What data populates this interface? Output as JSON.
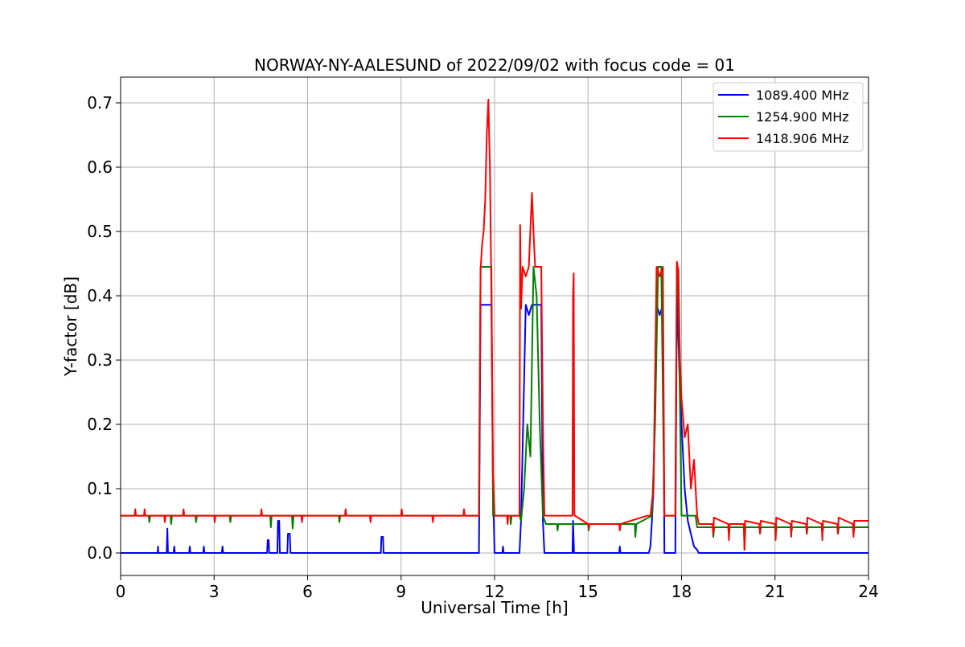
{
  "chart_data": {
    "type": "line",
    "title": "NORWAY-NY-AALESUND of 2022/09/02 with focus code = 01",
    "xlabel": "Universal Time [h]",
    "ylabel": "Y-factor [dB]",
    "xlim": [
      0,
      24
    ],
    "ylim": [
      -0.035,
      0.74
    ],
    "xticks": [
      0,
      3,
      6,
      9,
      12,
      15,
      18,
      21,
      24
    ],
    "yticks": [
      0.0,
      0.1,
      0.2,
      0.3,
      0.4,
      0.5,
      0.6,
      0.7
    ],
    "xtick_labels": [
      "0",
      "3",
      "6",
      "9",
      "12",
      "15",
      "18",
      "21",
      "24"
    ],
    "ytick_labels": [
      "0.0",
      "0.1",
      "0.2",
      "0.3",
      "0.4",
      "0.5",
      "0.6",
      "0.7"
    ],
    "grid": true,
    "legend_position": "top-right",
    "series": [
      {
        "name": "1089.400 MHz",
        "color": "#0000ff",
        "x": [
          0,
          1.19,
          1.2,
          1.21,
          1.48,
          1.5,
          1.52,
          1.7,
          1.72,
          1.74,
          2.2,
          2.22,
          2.24,
          2.65,
          2.67,
          2.69,
          3.25,
          3.27,
          3.29,
          4.7,
          4.72,
          4.75,
          4.77,
          5.03,
          5.05,
          5.09,
          5.11,
          5.35,
          5.37,
          5.43,
          5.45,
          8.35,
          8.37,
          8.42,
          8.44,
          11.5,
          11.55,
          11.6,
          11.9,
          11.95,
          12.0,
          12.25,
          12.27,
          12.29,
          12.8,
          12.85,
          13.0,
          13.1,
          13.2,
          13.5,
          13.55,
          13.6,
          14.5,
          14.52,
          14.55,
          14.58,
          16.0,
          16.02,
          16.04,
          16.95,
          17.0,
          17.05,
          17.1,
          17.2,
          17.3,
          17.4,
          17.45,
          17.8,
          17.85,
          17.95,
          18.0,
          18.1,
          18.2,
          18.3,
          18.4,
          18.5,
          18.55,
          24
        ],
        "y": [
          0,
          0,
          0.01,
          0,
          0,
          0.038,
          0,
          0,
          0.01,
          0,
          0,
          0.01,
          0,
          0,
          0.01,
          0,
          0,
          0.01,
          0,
          0,
          0.02,
          0.02,
          0,
          0,
          0.05,
          0.05,
          0,
          0,
          0.03,
          0.03,
          0,
          0,
          0.025,
          0.025,
          0,
          0,
          0.386,
          0.386,
          0.386,
          0.1,
          0,
          0,
          0.01,
          0,
          0,
          0.05,
          0.386,
          0.37,
          0.386,
          0.386,
          0.05,
          0,
          0,
          0.05,
          0,
          0,
          0,
          0.01,
          0,
          0,
          0.01,
          0.05,
          0.1,
          0.386,
          0.37,
          0.386,
          0,
          0,
          0.41,
          0.25,
          0.2,
          0.1,
          0.05,
          0.03,
          0.01,
          0.005,
          0,
          0
        ]
      },
      {
        "name": "1254.900 MHz",
        "color": "#008000",
        "x": [
          0,
          0.9,
          0.92,
          0.95,
          1.6,
          1.62,
          1.65,
          2.4,
          2.42,
          2.45,
          3.5,
          3.52,
          3.55,
          4.8,
          4.82,
          4.85,
          5.5,
          5.52,
          5.55,
          7.0,
          7.02,
          7.05,
          11.5,
          11.55,
          11.6,
          11.9,
          11.95,
          12.5,
          12.52,
          12.55,
          12.8,
          12.85,
          12.95,
          13.05,
          13.15,
          13.25,
          13.35,
          13.45,
          13.55,
          13.65,
          14.0,
          14.02,
          14.05,
          15.0,
          15.02,
          15.05,
          16.5,
          16.52,
          16.55,
          17.05,
          17.15,
          17.25,
          17.35,
          17.45,
          17.8,
          17.85,
          17.9,
          18.0,
          18.45,
          18.5,
          19.0,
          19.02,
          19.05,
          19.5,
          19.52,
          19.55,
          20.0,
          20.02,
          20.05,
          20.5,
          20.52,
          20.55,
          21.0,
          21.02,
          21.05,
          21.5,
          21.52,
          21.55,
          22.0,
          22.02,
          22.05,
          22.5,
          22.52,
          22.55,
          23.0,
          23.02,
          23.05,
          23.5,
          23.52,
          23.55,
          24
        ],
        "y": [
          0.058,
          0.058,
          0.048,
          0.058,
          0.058,
          0.045,
          0.058,
          0.058,
          0.048,
          0.058,
          0.058,
          0.048,
          0.058,
          0.058,
          0.04,
          0.058,
          0.058,
          0.038,
          0.058,
          0.058,
          0.048,
          0.058,
          0.058,
          0.445,
          0.445,
          0.445,
          0.058,
          0.058,
          0.045,
          0.058,
          0.058,
          0.05,
          0.1,
          0.2,
          0.15,
          0.445,
          0.4,
          0.2,
          0.058,
          0.045,
          0.045,
          0.035,
          0.045,
          0.045,
          0.035,
          0.045,
          0.045,
          0.025,
          0.045,
          0.058,
          0.2,
          0.445,
          0.445,
          0.058,
          0.058,
          0.445,
          0.4,
          0.058,
          0.058,
          0.04,
          0.04,
          0.025,
          0.04,
          0.04,
          0.03,
          0.04,
          0.04,
          0.005,
          0.04,
          0.04,
          0.03,
          0.04,
          0.04,
          0.025,
          0.04,
          0.04,
          0.03,
          0.04,
          0.04,
          0.03,
          0.04,
          0.04,
          0.03,
          0.04,
          0.04,
          0.03,
          0.04,
          0.04,
          0.03,
          0.04,
          0.04
        ]
      },
      {
        "name": "1418.906 MHz",
        "color": "#ff0000",
        "x": [
          0,
          0.45,
          0.47,
          0.49,
          0.75,
          0.77,
          0.79,
          1.4,
          1.42,
          1.44,
          2.0,
          2.02,
          2.04,
          3.0,
          3.02,
          3.04,
          4.5,
          4.52,
          4.54,
          5.8,
          5.82,
          5.84,
          7.2,
          7.22,
          7.24,
          8.0,
          8.02,
          8.04,
          9.0,
          9.02,
          9.04,
          10.0,
          10.02,
          10.04,
          11.0,
          11.02,
          11.04,
          11.5,
          11.55,
          11.6,
          11.65,
          11.7,
          11.75,
          11.8,
          11.85,
          11.9,
          11.95,
          12.0,
          12.4,
          12.42,
          12.44,
          12.8,
          12.82,
          12.85,
          12.9,
          13.0,
          13.1,
          13.2,
          13.25,
          13.3,
          13.4,
          13.5,
          13.55,
          13.6,
          14.5,
          14.52,
          14.54,
          14.56,
          14.58,
          15.0,
          15.02,
          15.04,
          16.0,
          16.02,
          16.04,
          16.9,
          17.0,
          17.1,
          17.2,
          17.3,
          17.4,
          17.45,
          17.75,
          17.8,
          17.85,
          17.9,
          17.95,
          18.0,
          18.1,
          18.2,
          18.3,
          18.4,
          18.5,
          18.55,
          19.0,
          19.02,
          19.04,
          19.5,
          19.52,
          19.54,
          20.0,
          20.02,
          20.04,
          20.5,
          20.52,
          20.54,
          21.0,
          21.02,
          21.04,
          21.5,
          21.52,
          21.54,
          22.0,
          22.02,
          22.04,
          22.5,
          22.52,
          22.54,
          23.0,
          23.02,
          23.04,
          23.5,
          23.52,
          23.54,
          24
        ],
        "y": [
          0.058,
          0.058,
          0.068,
          0.058,
          0.058,
          0.068,
          0.058,
          0.058,
          0.048,
          0.058,
          0.058,
          0.068,
          0.058,
          0.058,
          0.048,
          0.058,
          0.058,
          0.068,
          0.058,
          0.058,
          0.048,
          0.058,
          0.058,
          0.068,
          0.058,
          0.058,
          0.048,
          0.058,
          0.058,
          0.068,
          0.058,
          0.058,
          0.048,
          0.058,
          0.058,
          0.068,
          0.058,
          0.058,
          0.44,
          0.48,
          0.5,
          0.55,
          0.65,
          0.705,
          0.6,
          0.4,
          0.12,
          0.058,
          0.058,
          0.045,
          0.058,
          0.058,
          0.51,
          0.38,
          0.445,
          0.43,
          0.445,
          0.56,
          0.5,
          0.445,
          0.445,
          0.445,
          0.2,
          0.058,
          0.058,
          0.4,
          0.435,
          0.06,
          0.058,
          0.045,
          0.038,
          0.045,
          0.045,
          0.035,
          0.045,
          0.058,
          0.058,
          0.1,
          0.445,
          0.43,
          0.445,
          0.058,
          0.058,
          0.058,
          0.453,
          0.44,
          0.3,
          0.24,
          0.18,
          0.2,
          0.1,
          0.145,
          0.058,
          0.045,
          0.045,
          0.03,
          0.055,
          0.045,
          0.02,
          0.045,
          0.045,
          0.005,
          0.05,
          0.045,
          0.03,
          0.05,
          0.045,
          0.02,
          0.055,
          0.045,
          0.025,
          0.05,
          0.045,
          0.03,
          0.055,
          0.045,
          0.02,
          0.05,
          0.045,
          0.03,
          0.055,
          0.045,
          0.025,
          0.05,
          0.05
        ]
      }
    ]
  }
}
